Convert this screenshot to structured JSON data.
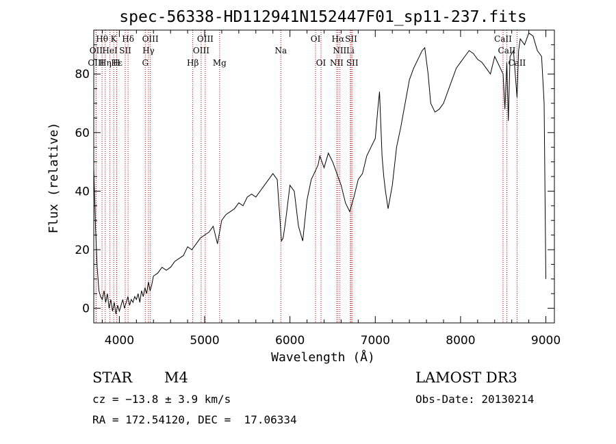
{
  "chart_data": {
    "type": "line",
    "title": "spec-56338-HD112941N152447F01_sp11-237.fits",
    "xlabel": "Wavelength (Å)",
    "ylabel": "Flux (relative)",
    "xlim": [
      3700,
      9100
    ],
    "ylim": [
      -5,
      95
    ],
    "xticks": [
      4000,
      5000,
      6000,
      7000,
      8000,
      9000
    ],
    "yticks": [
      0,
      20,
      40,
      60,
      80
    ],
    "xtick_labels": [
      "4000",
      "5000",
      "6000",
      "7000",
      "8000",
      "9000"
    ],
    "ytick_labels": [
      "0",
      "20",
      "40",
      "60",
      "80"
    ],
    "grid": false,
    "series": [
      {
        "name": "spectrum",
        "x": [
          3700,
          3720,
          3740,
          3760,
          3780,
          3800,
          3820,
          3840,
          3860,
          3880,
          3900,
          3920,
          3940,
          3960,
          3980,
          4000,
          4020,
          4040,
          4060,
          4080,
          4100,
          4120,
          4140,
          4160,
          4180,
          4200,
          4220,
          4240,
          4260,
          4280,
          4300,
          4320,
          4340,
          4360,
          4380,
          4400,
          4450,
          4500,
          4550,
          4600,
          4650,
          4700,
          4750,
          4800,
          4850,
          4900,
          4950,
          5000,
          5050,
          5100,
          5150,
          5200,
          5250,
          5300,
          5350,
          5400,
          5450,
          5500,
          5550,
          5600,
          5650,
          5700,
          5750,
          5800,
          5850,
          5900,
          5920,
          5950,
          6000,
          6050,
          6100,
          6150,
          6200,
          6250,
          6300,
          6330,
          6350,
          6400,
          6450,
          6500,
          6550,
          6600,
          6650,
          6700,
          6720,
          6750,
          6800,
          6850,
          6900,
          6950,
          7000,
          7030,
          7050,
          7080,
          7100,
          7120,
          7150,
          7200,
          7250,
          7300,
          7350,
          7400,
          7450,
          7500,
          7550,
          7580,
          7620,
          7650,
          7700,
          7750,
          7800,
          7850,
          7900,
          7950,
          8000,
          8050,
          8100,
          8150,
          8200,
          8250,
          8300,
          8350,
          8400,
          8450,
          8498,
          8520,
          8542,
          8560,
          8580,
          8620,
          8662,
          8680,
          8700,
          8750,
          8800,
          8850,
          8900,
          8950,
          8980,
          9000
        ],
        "values": [
          48,
          28,
          14,
          6,
          4,
          3,
          6,
          2,
          5,
          0,
          3,
          -1,
          2,
          -2,
          1,
          -1,
          1,
          3,
          0,
          2,
          4,
          1,
          3,
          2,
          4,
          3,
          5,
          2,
          6,
          4,
          7,
          5,
          9,
          6,
          8,
          11,
          12,
          14,
          13,
          14,
          16,
          17,
          18,
          21,
          20,
          22,
          24,
          25,
          26,
          28,
          22,
          30,
          32,
          33,
          34,
          36,
          35,
          38,
          39,
          38,
          40,
          42,
          44,
          46,
          44,
          23,
          24,
          30,
          42,
          40,
          28,
          23,
          37,
          44,
          47,
          49,
          52,
          48,
          53,
          50,
          46,
          42,
          36,
          33,
          35,
          38,
          44,
          46,
          52,
          55,
          58,
          68,
          74,
          52,
          45,
          40,
          34,
          42,
          55,
          62,
          70,
          78,
          82,
          85,
          88,
          89,
          80,
          70,
          67,
          68,
          70,
          74,
          78,
          82,
          84,
          86,
          88,
          87,
          85,
          84,
          82,
          80,
          86,
          83,
          80,
          68,
          84,
          64,
          86,
          88,
          72,
          88,
          92,
          90,
          94,
          93,
          88,
          86,
          70,
          10
        ]
      }
    ],
    "spectral_lines": [
      {
        "label": "Hθ",
        "x": 3797,
        "row": 0
      },
      {
        "label": "K",
        "x": 3934,
        "row": 0
      },
      {
        "label": "Hδ",
        "x": 4102,
        "row": 0
      },
      {
        "label": "OIII",
        "x": 4363,
        "row": 0
      },
      {
        "label": "OIII",
        "x": 5007,
        "row": 0
      },
      {
        "label": "OI",
        "x": 6300,
        "row": 0
      },
      {
        "label": "Hα",
        "x": 6563,
        "row": 0
      },
      {
        "label": "SII",
        "x": 6717,
        "row": 0
      },
      {
        "label": "CaII",
        "x": 8498,
        "row": 0
      },
      {
        "label": "OII",
        "x": 3727,
        "row": 1
      },
      {
        "label": "HeI",
        "x": 3889,
        "row": 1
      },
      {
        "label": "SII",
        "x": 4069,
        "row": 1
      },
      {
        "label": "Hγ",
        "x": 4341,
        "row": 1
      },
      {
        "label": "OIII",
        "x": 4959,
        "row": 1
      },
      {
        "label": "Na",
        "x": 5893,
        "row": 1
      },
      {
        "label": "NII",
        "x": 6583,
        "row": 1
      },
      {
        "label": "Li",
        "x": 6708,
        "row": 1
      },
      {
        "label": "CaII",
        "x": 8542,
        "row": 1
      },
      {
        "label": "OIII",
        "x": 3727,
        "row": 2
      },
      {
        "label": "Hε",
        "x": 3970,
        "row": 2
      },
      {
        "label": "Hη",
        "x": 3835,
        "row": 2
      },
      {
        "label": "H",
        "x": 3968,
        "row": 2
      },
      {
        "label": "G",
        "x": 4304,
        "row": 2
      },
      {
        "label": "Hβ",
        "x": 4861,
        "row": 2
      },
      {
        "label": "Mg",
        "x": 5175,
        "row": 2
      },
      {
        "label": "OI",
        "x": 6364,
        "row": 2
      },
      {
        "label": "NII",
        "x": 6548,
        "row": 2
      },
      {
        "label": "SII",
        "x": 6731,
        "row": 2
      },
      {
        "label": "CaII",
        "x": 8662,
        "row": 2
      }
    ]
  },
  "info": {
    "object_type": "STAR",
    "subclass": "M4",
    "survey": "LAMOST DR3",
    "cz": "cz = −13.8 ± 3.9 km/s",
    "obs_date": "Obs-Date: 20130214",
    "coords": "RA = 172.54120, DEC =  17.06334"
  }
}
